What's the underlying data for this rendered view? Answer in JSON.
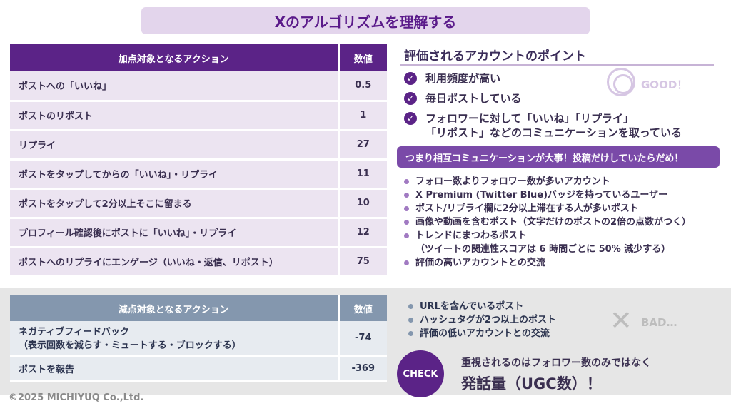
{
  "title": "Xのアルゴリズムを理解する",
  "plus_table": {
    "header_action": "加点対象となるアクション",
    "header_value": "数値",
    "rows": [
      {
        "action": "ポストへの「いいね」",
        "value": "0.5"
      },
      {
        "action": "ポストのリポスト",
        "value": "1"
      },
      {
        "action": "リプライ",
        "value": "27"
      },
      {
        "action": "ポストをタップしてからの「いいね」・リプライ",
        "value": "11"
      },
      {
        "action": "ポストをタップして2分以上そこに留まる",
        "value": "10"
      },
      {
        "action": "プロフィール確認後にポストに「いいね」・リプライ",
        "value": "12"
      },
      {
        "action": "ポストへのリプライにエンゲージ（いいね・返信、リポスト）",
        "value": "75"
      }
    ]
  },
  "minus_table": {
    "header_action": "減点対象となるアクション",
    "header_value": "数値",
    "rows": [
      {
        "action": "ネガティブフィードバック",
        "sub": "（表示回数を減らす・ミュートする・ブロックする）",
        "value": "-74"
      },
      {
        "action": "ポストを報告",
        "value": "-369"
      }
    ]
  },
  "evaluation": {
    "heading": "評価されるアカウントのポイント",
    "checks": [
      "利用頻度が高い",
      "毎日ポストしている",
      "フォロワーに対して「いいね」「リプライ」",
      "「リポスト」などのコミュニケーションを取っている"
    ],
    "good_label": "GOOD！",
    "callout": "つまり相互コミュニケーションが大事！投稿だけしていたらだめ！",
    "points": [
      "フォロー数よりフォロワー数が多いアカウント",
      "X Premium (Twitter Blue)バッジを持っているユーザー",
      "ポスト/リプライ欄に2分以上滞在する人が多いポスト",
      "画像や動画を含むポスト（文字だけのポストの2倍の点数がつく）",
      "トレンドにまつわるポスト",
      "（ツイートの関連性スコアは 6 時間ごとに 50% 減少する）",
      "評価の高いアカウントとの交流"
    ]
  },
  "bad": {
    "points": [
      "URLを含んでいるポスト",
      "ハッシュタグが2つ以上のポスト",
      "評価の低いアカウントとの交流"
    ],
    "label": "BAD…"
  },
  "check": {
    "badge": "CHECK",
    "line1": "重視されるのはフォロワー数のみではなく",
    "line2": "発話量（UGC数）！"
  },
  "copyright": "©2025 MICHIYUQ Co.,Ltd."
}
